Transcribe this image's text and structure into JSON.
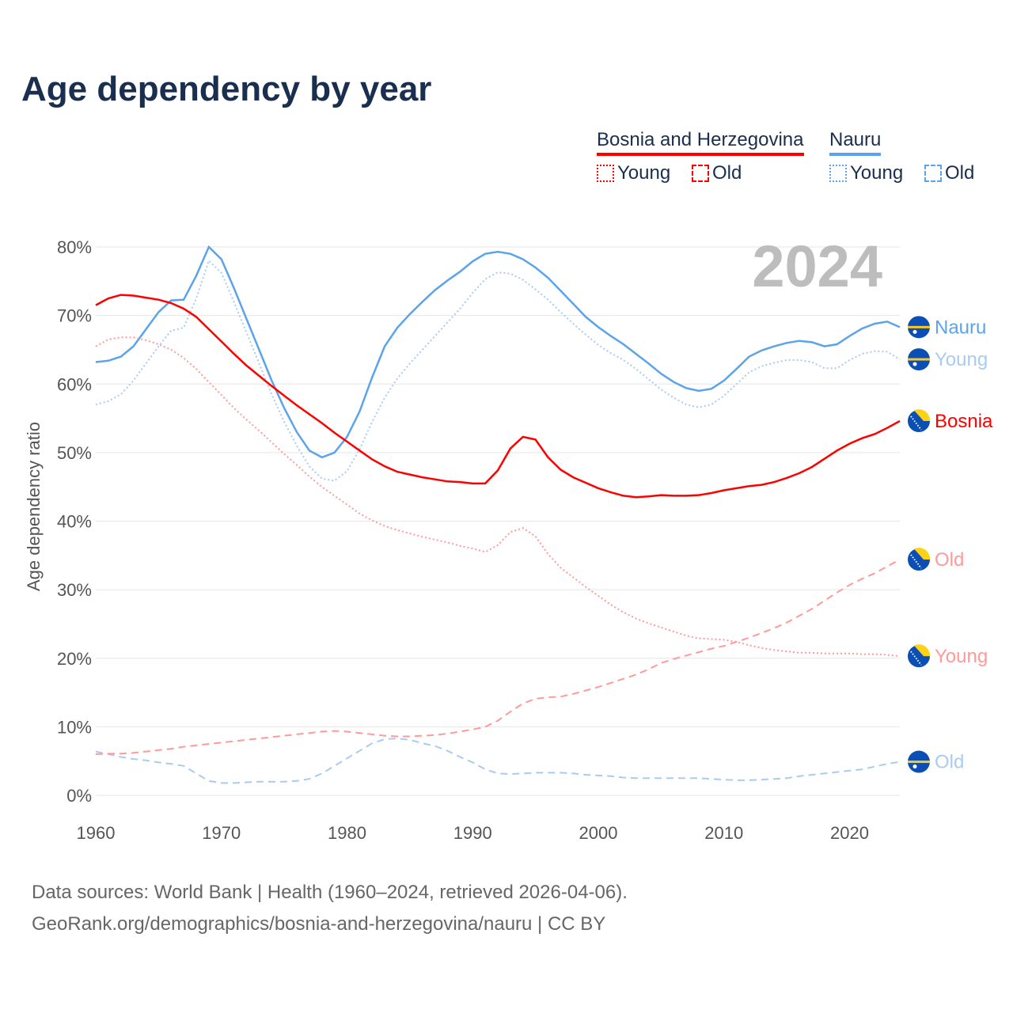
{
  "title": "Age dependency by year",
  "legend": {
    "countries": [
      {
        "name": "Bosnia and Herzegovina",
        "color": "#ff0000",
        "light": "#ff9a9a"
      },
      {
        "name": "Nauru",
        "color": "#5ba3eb",
        "light": "#a9cbf2"
      }
    ],
    "young_label": "Young",
    "old_label": "Old"
  },
  "year_label": "2024",
  "footer": {
    "line1": "Data sources: World Bank | Health (1960–2024, retrieved 2026-04-06).",
    "line2": "GeoRank.org/demographics/bosnia-and-herzegovina/nauru | CC BY"
  },
  "chart_data": {
    "type": "line",
    "title": "Age dependency by year",
    "xlabel": "",
    "ylabel": "Age dependency ratio",
    "xlim": [
      1960,
      2024
    ],
    "ylim": [
      0,
      80
    ],
    "xticks": [
      "1960",
      "1970",
      "1980",
      "1990",
      "2000",
      "2010",
      "2020"
    ],
    "yticks": [
      "0%",
      "10%",
      "20%",
      "30%",
      "40%",
      "50%",
      "60%",
      "70%",
      "80%"
    ],
    "grid": true,
    "x_start": 1960,
    "series": [
      {
        "name": "Nauru",
        "label": "Nauru",
        "country": 1,
        "style": "solid",
        "values": [
          63.2,
          63.4,
          64.0,
          65.5,
          68,
          70.5,
          72.2,
          72.3,
          75.8,
          80.0,
          78.2,
          74,
          69.5,
          65,
          60.5,
          56.5,
          53,
          50.3,
          49.3,
          50,
          52.3,
          56,
          61,
          65.5,
          68.2,
          70.2,
          72,
          73.7,
          75.1,
          76.4,
          77.9,
          79,
          79.3,
          79,
          78.2,
          77,
          75.5,
          73.6,
          71.7,
          69.8,
          68.3,
          67,
          65.8,
          64.4,
          63,
          61.5,
          60.3,
          59.4,
          59,
          59.3,
          60.5,
          62.2,
          64,
          64.9,
          65.5,
          66,
          66.3,
          66.1,
          65.5,
          65.8,
          67,
          68.1,
          68.8,
          69.1,
          68.3
        ]
      },
      {
        "name": "Nauru Young",
        "label": "Young",
        "country": 1,
        "style": "dotted",
        "values": [
          57,
          57.5,
          58.5,
          60.5,
          63,
          65.5,
          67.8,
          68.2,
          72.5,
          78,
          76.2,
          72,
          67.5,
          63,
          58.5,
          54.5,
          51,
          48,
          46.2,
          45.9,
          47.3,
          50.5,
          54.5,
          58,
          60.8,
          63,
          65,
          67,
          69,
          71,
          73.3,
          75.3,
          76.3,
          76.1,
          75.2,
          73.8,
          72.3,
          70.5,
          68.8,
          67.2,
          65.7,
          64.5,
          63.5,
          62.2,
          60.7,
          59.2,
          58,
          57,
          56.6,
          57,
          58.3,
          60,
          61.7,
          62.6,
          63.1,
          63.5,
          63.5,
          63.2,
          62.3,
          62.3,
          63.5,
          64.4,
          64.8,
          64.7,
          63.6
        ]
      },
      {
        "name": "Nauru Old",
        "label": "Old",
        "country": 1,
        "style": "dashed",
        "values": [
          6.4,
          6,
          5.6,
          5.3,
          5.1,
          4.8,
          4.6,
          4.3,
          3.2,
          2.1,
          1.8,
          1.8,
          1.9,
          2,
          2,
          2,
          2.1,
          2.4,
          3.2,
          4.3,
          5.4,
          6.5,
          7.6,
          8.2,
          8.3,
          8.1,
          7.6,
          7.2,
          6.5,
          5.6,
          4.8,
          3.8,
          3.2,
          3.1,
          3.2,
          3.3,
          3.3,
          3.3,
          3.2,
          3,
          2.9,
          2.8,
          2.6,
          2.5,
          2.5,
          2.5,
          2.5,
          2.5,
          2.5,
          2.4,
          2.3,
          2.2,
          2.2,
          2.3,
          2.4,
          2.5,
          2.8,
          3,
          3.2,
          3.4,
          3.6,
          3.8,
          4.2,
          4.6,
          4.9
        ]
      },
      {
        "name": "Bosnia and Herzegovina",
        "label": "Bosnia",
        "country": 0,
        "style": "solid",
        "values": [
          71.5,
          72.5,
          73,
          72.9,
          72.6,
          72.3,
          71.8,
          71,
          69.8,
          68,
          66.2,
          64.4,
          62.7,
          61.2,
          59.7,
          58.3,
          56.9,
          55.6,
          54.3,
          52.9,
          51.6,
          50.3,
          49,
          48,
          47.2,
          46.8,
          46.4,
          46.1,
          45.8,
          45.7,
          45.5,
          45.5,
          47.4,
          50.6,
          52.3,
          51.9,
          49.3,
          47.5,
          46.4,
          45.6,
          44.8,
          44.2,
          43.7,
          43.5,
          43.6,
          43.8,
          43.7,
          43.7,
          43.8,
          44.1,
          44.5,
          44.8,
          45.1,
          45.3,
          45.7,
          46.3,
          47,
          47.9,
          49.1,
          50.3,
          51.3,
          52.1,
          52.7,
          53.6,
          54.6
        ]
      },
      {
        "name": "Bosnia and Herzegovina Young",
        "label": "Young",
        "country": 0,
        "style": "dotted",
        "values": [
          65.5,
          66.5,
          66.8,
          66.8,
          66.4,
          65.8,
          65,
          63.8,
          62.2,
          60.3,
          58.4,
          56.5,
          54.8,
          53.2,
          51.5,
          49.8,
          48.2,
          46.5,
          45,
          43.7,
          42.4,
          41.1,
          40.1,
          39.3,
          38.7,
          38.2,
          37.7,
          37.3,
          36.9,
          36.4,
          36,
          35.5,
          36.5,
          38.4,
          39,
          37.8,
          35.2,
          33.2,
          31.8,
          30.4,
          29.1,
          27.8,
          26.7,
          25.8,
          25.1,
          24.5,
          23.9,
          23.3,
          22.9,
          22.8,
          22.7,
          22.4,
          21.9,
          21.5,
          21.2,
          21,
          20.8,
          20.8,
          20.7,
          20.7,
          20.7,
          20.6,
          20.6,
          20.5,
          20.3
        ]
      },
      {
        "name": "Bosnia and Herzegovina Old",
        "label": "Old",
        "country": 0,
        "style": "dashed",
        "values": [
          6,
          6.1,
          6.1,
          6.2,
          6.4,
          6.6,
          6.8,
          7.1,
          7.3,
          7.5,
          7.7,
          7.9,
          8.1,
          8.3,
          8.5,
          8.7,
          8.9,
          9.1,
          9.3,
          9.4,
          9.3,
          9.1,
          8.9,
          8.7,
          8.6,
          8.6,
          8.7,
          8.8,
          9,
          9.3,
          9.6,
          10,
          10.9,
          12.2,
          13.4,
          14.1,
          14.3,
          14.4,
          14.8,
          15.3,
          15.8,
          16.4,
          17,
          17.6,
          18.4,
          19.3,
          19.9,
          20.4,
          20.9,
          21.4,
          21.8,
          22.4,
          23,
          23.7,
          24.4,
          25.2,
          26.2,
          27.2,
          28.4,
          29.6,
          30.7,
          31.6,
          32.4,
          33.4,
          34.4
        ]
      }
    ]
  }
}
